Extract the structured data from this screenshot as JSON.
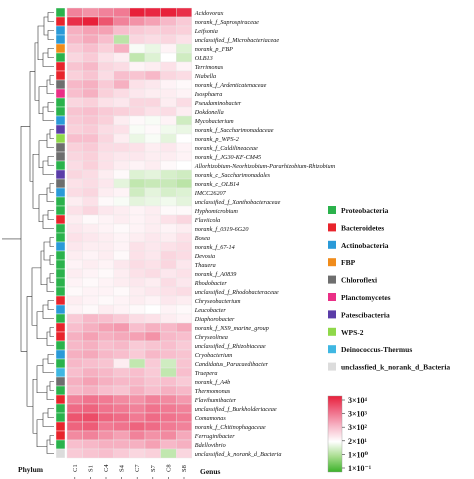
{
  "chart_data": {
    "type": "heatmap",
    "xlabel": "Genus",
    "row_axis_label": "Phylum",
    "columns": [
      "C1",
      "S1",
      "C4",
      "S4",
      "C7",
      "S7",
      "C8",
      "S8"
    ],
    "rows": [
      {
        "genus": "Acidovorax",
        "phylum": "Proteobacteria",
        "v": [
          3.2,
          3.0,
          3.2,
          3.3,
          4.5,
          4.4,
          4.5,
          4.3
        ]
      },
      {
        "genus": "norank_f_Saprospiraceae",
        "phylum": "Bacteroidetes",
        "v": [
          4.3,
          4.5,
          3.8,
          3.2,
          3.0,
          2.8,
          2.5,
          2.2
        ]
      },
      {
        "genus": "Leifsonia",
        "phylum": "Actinobacteria",
        "v": [
          2.6,
          2.8,
          2.8,
          2.4,
          2.2,
          2.1,
          2.2,
          2.1
        ]
      },
      {
        "genus": "unclassified_f_Microbacteriaceae",
        "phylum": "Actinobacteria",
        "v": [
          2.5,
          2.7,
          2.4,
          0.3,
          2.0,
          1.9,
          2.0,
          1.8
        ]
      },
      {
        "genus": "norank_p_FBP",
        "phylum": "FBP",
        "v": [
          2.2,
          2.4,
          2.1,
          2.6,
          1.2,
          1.0,
          1.5,
          0.8
        ]
      },
      {
        "genus": "OLB13",
        "phylum": "Proteobacteria",
        "v": [
          2.0,
          2.2,
          1.8,
          1.6,
          0.4,
          0.8,
          1.3,
          0.6
        ]
      },
      {
        "genus": "Terrimonas",
        "phylum": "Bacteroidetes",
        "v": [
          2.3,
          2.5,
          2.0,
          1.9,
          1.5,
          1.6,
          1.8,
          1.5
        ]
      },
      {
        "genus": "Niabella",
        "phylum": "Bacteroidetes",
        "v": [
          2.1,
          2.3,
          1.9,
          2.4,
          2.3,
          2.5,
          2.0,
          1.9
        ]
      },
      {
        "genus": "norank_f_Ardenticatenaceae",
        "phylum": "Chloroflexi",
        "v": [
          2.5,
          2.6,
          2.2,
          2.6,
          1.8,
          1.7,
          1.5,
          1.4
        ]
      },
      {
        "genus": "Isosphaera",
        "phylum": "Planctomycetes",
        "v": [
          2.4,
          2.6,
          2.1,
          1.9,
          1.7,
          1.6,
          1.6,
          1.5
        ]
      },
      {
        "genus": "Pseudaminobacter",
        "phylum": "Proteobacteria",
        "v": [
          2.0,
          2.1,
          1.8,
          1.7,
          2.0,
          2.0,
          1.6,
          1.9
        ]
      },
      {
        "genus": "Dokdonella",
        "phylum": "Proteobacteria",
        "v": [
          2.3,
          2.4,
          2.2,
          2.1,
          2.0,
          1.8,
          1.9,
          1.6
        ]
      },
      {
        "genus": "Mycobacterium",
        "phylum": "Actinobacteria",
        "v": [
          2.2,
          2.3,
          2.1,
          1.6,
          1.4,
          1.2,
          1.5,
          0.6
        ]
      },
      {
        "genus": "norank_f_Saccharimonadaceae",
        "phylum": "Patescibacteria",
        "v": [
          2.1,
          2.2,
          1.9,
          1.8,
          1.2,
          1.4,
          1.1,
          1.0
        ]
      },
      {
        "genus": "norank_p_WPS-2",
        "phylum": "WPS-2",
        "v": [
          2.4,
          2.4,
          2.0,
          1.6,
          1.0,
          1.2,
          0.9,
          1.3
        ]
      },
      {
        "genus": "norank_f_Caldilineaceae",
        "phylum": "Chloroflexi",
        "v": [
          2.1,
          2.2,
          1.9,
          1.9,
          1.8,
          1.6,
          1.7,
          1.5
        ]
      },
      {
        "genus": "norank_f_JG30-KF-CM45",
        "phylum": "Chloroflexi",
        "v": [
          2.0,
          2.1,
          1.8,
          1.7,
          1.7,
          1.6,
          1.6,
          1.5
        ]
      },
      {
        "genus": "Allorhizobium-Neorhizobium-Pararhizobium-Rhizobium",
        "phylum": "Proteobacteria",
        "v": [
          1.9,
          2.1,
          1.8,
          1.6,
          1.5,
          1.6,
          1.4,
          1.3
        ]
      },
      {
        "genus": "norank_c_Saccharimonadales",
        "phylum": "Patescibacteria",
        "v": [
          2.0,
          1.9,
          1.6,
          1.4,
          0.8,
          0.9,
          0.7,
          0.6
        ]
      },
      {
        "genus": "norank_c_OLB14",
        "phylum": "Chloroflexi",
        "v": [
          1.8,
          1.9,
          1.7,
          0.9,
          0.4,
          0.5,
          0.5,
          0.3
        ]
      },
      {
        "genus": "IMCC26207",
        "phylum": "Actinobacteria",
        "v": [
          1.9,
          2.0,
          1.6,
          1.5,
          0.6,
          0.9,
          0.7,
          0.8
        ]
      },
      {
        "genus": "unclassified_f_Xanthobacteraceae",
        "phylum": "Proteobacteria",
        "v": [
          1.6,
          1.8,
          1.4,
          1.2,
          0.9,
          1.0,
          1.1,
          0.9
        ]
      },
      {
        "genus": "Hyphomicrobium",
        "phylum": "Proteobacteria",
        "v": [
          1.8,
          2.0,
          1.7,
          1.6,
          1.5,
          1.6,
          1.4,
          1.4
        ]
      },
      {
        "genus": "Fluviicola",
        "phylum": "Bacteroidetes",
        "v": [
          1.6,
          1.4,
          1.5,
          1.6,
          1.5,
          1.6,
          1.8,
          2.0
        ]
      },
      {
        "genus": "norank_f_0319-6G20",
        "phylum": "Proteobacteria",
        "v": [
          1.7,
          1.6,
          1.5,
          1.4,
          1.5,
          1.6,
          1.5,
          1.6
        ]
      },
      {
        "genus": "Bosea",
        "phylum": "Proteobacteria",
        "v": [
          1.8,
          1.7,
          1.6,
          1.5,
          1.6,
          1.7,
          1.6,
          1.8
        ]
      },
      {
        "genus": "norank_f_67-14",
        "phylum": "Actinobacteria",
        "v": [
          1.7,
          1.6,
          1.6,
          1.5,
          1.8,
          1.7,
          1.8,
          1.9
        ]
      },
      {
        "genus": "Devosia",
        "phylum": "Proteobacteria",
        "v": [
          1.6,
          1.5,
          1.6,
          1.4,
          1.8,
          1.7,
          2.0,
          1.9
        ]
      },
      {
        "genus": "Thauera",
        "phylum": "Proteobacteria",
        "v": [
          1.5,
          1.6,
          1.5,
          1.7,
          1.9,
          1.8,
          2.0,
          1.7
        ]
      },
      {
        "genus": "norank_f_A0839",
        "phylum": "Proteobacteria",
        "v": [
          1.6,
          1.5,
          1.4,
          1.6,
          1.8,
          1.9,
          1.7,
          1.8
        ]
      },
      {
        "genus": "Rhodobacter",
        "phylum": "Proteobacteria",
        "v": [
          1.5,
          1.4,
          1.5,
          1.6,
          1.7,
          1.6,
          1.9,
          1.7
        ]
      },
      {
        "genus": "unclassified_f_Rhodobacteraceae",
        "phylum": "Proteobacteria",
        "v": [
          1.4,
          1.5,
          1.5,
          1.4,
          1.6,
          1.7,
          1.8,
          1.9
        ]
      },
      {
        "genus": "Chryseobacterium",
        "phylum": "Bacteroidetes",
        "v": [
          1.6,
          1.5,
          1.4,
          1.5,
          1.6,
          1.5,
          1.7,
          1.6
        ]
      },
      {
        "genus": "Leucobacter",
        "phylum": "Actinobacteria",
        "v": [
          1.5,
          1.4,
          1.6,
          1.5,
          1.4,
          1.3,
          1.5,
          1.4
        ]
      },
      {
        "genus": "Diaphorobacter",
        "phylum": "Proteobacteria",
        "v": [
          2.2,
          2.5,
          2.4,
          2.2,
          1.9,
          1.8,
          1.6,
          1.5
        ]
      },
      {
        "genus": "norank_f_NS9_marine_group",
        "phylum": "Bacteroidetes",
        "v": [
          2.4,
          2.6,
          2.8,
          2.9,
          2.4,
          2.6,
          2.5,
          2.7
        ]
      },
      {
        "genus": "Chryseolinea",
        "phylum": "Bacteroidetes",
        "v": [
          2.6,
          2.8,
          2.6,
          2.7,
          2.8,
          3.0,
          2.5,
          2.4
        ]
      },
      {
        "genus": "unclassified_f_Rhizobiaceae",
        "phylum": "Proteobacteria",
        "v": [
          2.5,
          2.6,
          2.4,
          2.5,
          2.2,
          2.3,
          2.4,
          2.2
        ]
      },
      {
        "genus": "Cryobacterium",
        "phylum": "Actinobacteria",
        "v": [
          2.6,
          2.7,
          2.5,
          2.4,
          2.2,
          2.5,
          2.4,
          2.3
        ]
      },
      {
        "genus": "Candidatus_Paracaedibacter",
        "phylum": "Proteobacteria",
        "v": [
          2.5,
          2.4,
          2.3,
          1.6,
          0.4,
          2.2,
          0.6,
          2.3
        ]
      },
      {
        "genus": "Truepera",
        "phylum": "Deinococcus-Thermus",
        "v": [
          2.4,
          2.6,
          2.5,
          2.3,
          2.4,
          2.2,
          0.4,
          2.4
        ]
      },
      {
        "genus": "norank_f_A4b",
        "phylum": "Chloroflexi",
        "v": [
          2.6,
          2.8,
          2.6,
          2.5,
          2.5,
          2.3,
          2.4,
          2.2
        ]
      },
      {
        "genus": "Thermomonas",
        "phylum": "Proteobacteria",
        "v": [
          2.5,
          2.6,
          2.4,
          2.3,
          2.6,
          2.4,
          2.6,
          2.5
        ]
      },
      {
        "genus": "Flavihumibacter",
        "phylum": "Bacteroidetes",
        "v": [
          3.2,
          3.4,
          3.3,
          3.1,
          3.0,
          3.2,
          3.1,
          2.9
        ]
      },
      {
        "genus": "unclassified_f_Burkholderiaceae",
        "phylum": "Proteobacteria",
        "v": [
          3.5,
          3.6,
          3.4,
          3.3,
          3.2,
          3.4,
          3.3,
          3.2
        ]
      },
      {
        "genus": "Comamonas",
        "phylum": "Proteobacteria",
        "v": [
          3.8,
          3.9,
          3.6,
          3.5,
          3.3,
          3.5,
          3.4,
          3.3
        ]
      },
      {
        "genus": "norank_f_Chitinophagaceae",
        "phylum": "Bacteroidetes",
        "v": [
          3.6,
          3.7,
          3.3,
          3.4,
          3.6,
          3.5,
          3.3,
          3.2
        ]
      },
      {
        "genus": "Ferruginibacter",
        "phylum": "Bacteroidetes",
        "v": [
          3.1,
          3.2,
          3.0,
          2.8,
          3.2,
          3.0,
          3.1,
          2.7
        ]
      },
      {
        "genus": "Bdellovibrio",
        "phylum": "Proteobacteria",
        "v": [
          2.4,
          2.5,
          2.6,
          2.6,
          2.6,
          2.8,
          2.5,
          2.6
        ]
      },
      {
        "genus": "unclassified_k_norank_d_Bacteria",
        "phylum": "unclassified_k_norank_d_Bacteria",
        "v": [
          2.2,
          2.3,
          2.4,
          2.2,
          2.0,
          2.1,
          0.4,
          2.0
        ]
      }
    ],
    "legend": [
      {
        "name": "Proteobacteria",
        "color": "#2bb24c"
      },
      {
        "name": "Bacteroidetes",
        "color": "#e8242c"
      },
      {
        "name": "Actinobacteria",
        "color": "#2a9ad8"
      },
      {
        "name": "FBP",
        "color": "#f08c1c"
      },
      {
        "name": "Chloroflexi",
        "color": "#6e6e6e"
      },
      {
        "name": "Planctomycetes",
        "color": "#ea2f86"
      },
      {
        "name": "Patescibacteria",
        "color": "#5a3da8"
      },
      {
        "name": "WPS-2",
        "color": "#8fd84a"
      },
      {
        "name": "Deinococcus-Thermus",
        "color": "#3fb7e2"
      },
      {
        "name": "unclassfied_k_norank_d_Bacteria",
        "color": "#dcdcdc"
      }
    ],
    "color_scale": {
      "labels": [
        "3×10⁴",
        "3×10³",
        "3×10²",
        "2×10¹",
        "1×10⁰",
        "1×10⁻¹"
      ],
      "colors": [
        "#e8203a",
        "#ef6b86",
        "#f7b8c8",
        "#ffffff",
        "#a6dc8c",
        "#3bb22a"
      ]
    }
  }
}
